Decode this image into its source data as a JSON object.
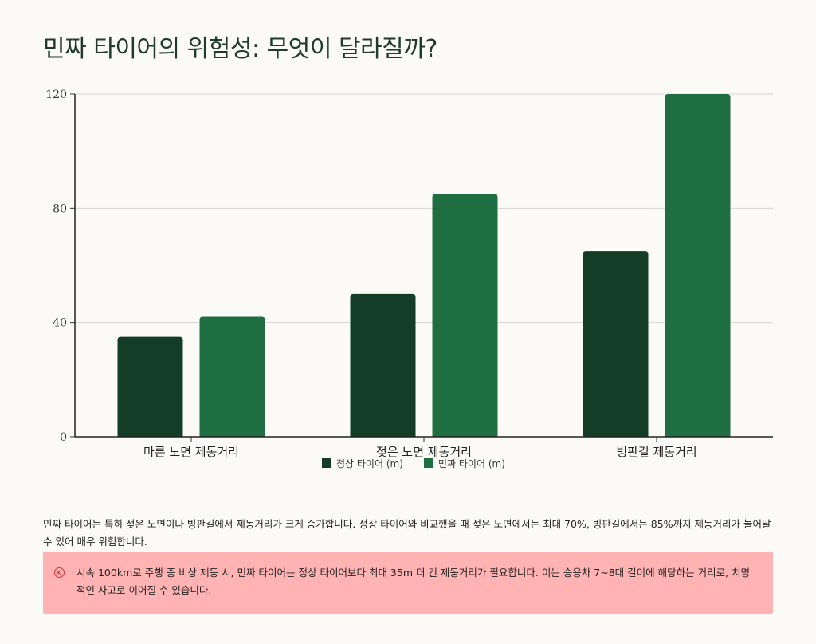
{
  "title": "민짜 타이어의 위험성: 무엇이 달라질까?",
  "chart_data": {
    "type": "bar",
    "categories": [
      "마른 노면 제동거리",
      "젖은 노면 제동거리",
      "빙판길 제동거리"
    ],
    "series": [
      {
        "name": "정상 타이어 (m)",
        "values": [
          35,
          50,
          65
        ],
        "color": "#133d27"
      },
      {
        "name": "민짜 타이어 (m)",
        "values": [
          42,
          85,
          120
        ],
        "color": "#1f6e42"
      }
    ],
    "yticks": [
      0,
      40,
      80,
      120
    ],
    "ylim": [
      0,
      120
    ],
    "grid": true,
    "legend": "bottom"
  },
  "description": "민짜 타이어는 특히 젖은 노면이나 빙판길에서 제동거리가 크게 증가합니다. 정상 타이어와 비교했을 때 젖은 노면에서는 최대 70%, 빙판길에서는 85%까지 제동거리가 늘어날 수 있어 매우 위험합니다.",
  "alert": {
    "icon": "circle-x-icon",
    "text": "시속 100km로 주행 중 비상 제동 시, 민짜 타이어는 정상 타이어보다 최대 35m 더 긴 제동거리가 필요합니다. 이는 승용차 7~8대 길이에 해당하는 거리로, 치명적인 사고로 이어질 수 있습니다."
  }
}
